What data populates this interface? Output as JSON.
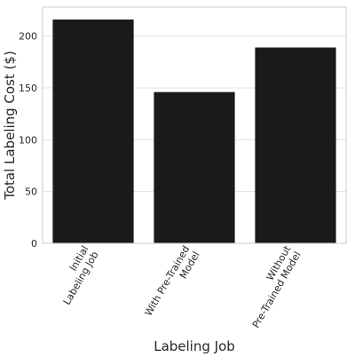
{
  "chart_data": {
    "type": "bar",
    "categories": [
      [
        "Initial",
        "Labeling Job"
      ],
      [
        "With Pre-Trained",
        "Model"
      ],
      [
        "Without",
        "Pre-Trained Model"
      ]
    ],
    "values": [
      216,
      146,
      189
    ],
    "xlabel": "Labeling Job",
    "ylabel": "Total Labeling Cost ($)",
    "ylim": [
      0,
      228
    ],
    "yticks": [
      0,
      50,
      100,
      150,
      200
    ],
    "grid": "horizontal",
    "bar_color": "#1a1a1a",
    "grid_color": "#e0e0e0",
    "frame_color": "#cccccc"
  }
}
